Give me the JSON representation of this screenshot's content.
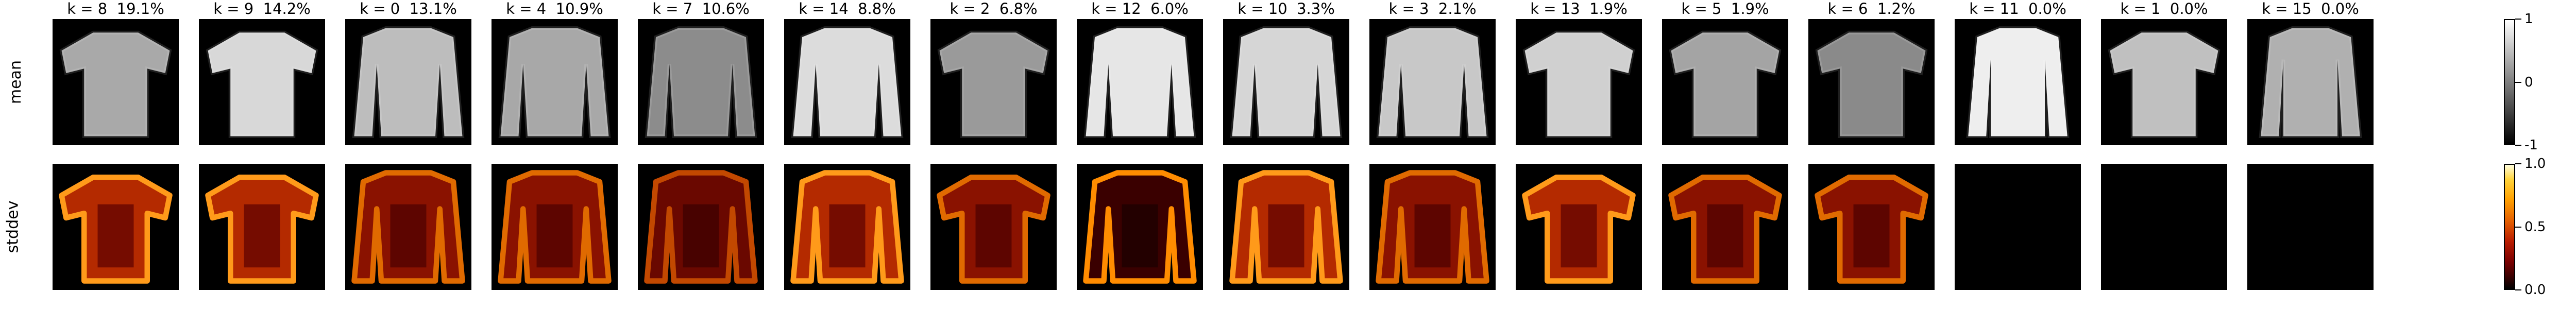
{
  "figure": {
    "row_labels": [
      "mean",
      "stddev"
    ],
    "panels": [
      {
        "k": 8,
        "pct": "19.1%",
        "title": "k = 8  19.1%",
        "shape": "tshirt",
        "mean_fill": "#a9a9a9",
        "std_level": "high"
      },
      {
        "k": 9,
        "pct": "14.2%",
        "title": "k = 9  14.2%",
        "shape": "tshirt",
        "mean_fill": "#d8d8d8",
        "std_level": "high"
      },
      {
        "k": 0,
        "pct": "13.1%",
        "title": "k = 0  13.1%",
        "shape": "sweater",
        "mean_fill": "#bdbdbd",
        "std_level": "mid"
      },
      {
        "k": 4,
        "pct": "10.9%",
        "title": "k = 4  10.9%",
        "shape": "sweater",
        "mean_fill": "#a8a8a8",
        "std_level": "mid"
      },
      {
        "k": 7,
        "pct": "10.6%",
        "title": "k = 7  10.6%",
        "shape": "sweater",
        "mean_fill": "#8c8c8c",
        "std_level": "low"
      },
      {
        "k": 14,
        "pct": "8.8%",
        "title": "k = 14  8.8%",
        "shape": "sweater",
        "mean_fill": "#dcdcdc",
        "std_level": "high"
      },
      {
        "k": 2,
        "pct": "6.8%",
        "title": "k = 2  6.8%",
        "shape": "tshirt",
        "mean_fill": "#9a9a9a",
        "std_level": "mid"
      },
      {
        "k": 12,
        "pct": "6.0%",
        "title": "k = 12  6.0%",
        "shape": "sweater",
        "mean_fill": "#e6e6e6",
        "std_level": "dark"
      },
      {
        "k": 10,
        "pct": "3.3%",
        "title": "k = 10  3.3%",
        "shape": "sweater",
        "mean_fill": "#d6d6d6",
        "std_level": "high"
      },
      {
        "k": 3,
        "pct": "2.1%",
        "title": "k = 3  2.1%",
        "shape": "sweater",
        "mean_fill": "#c8c8c8",
        "std_level": "mid"
      },
      {
        "k": 13,
        "pct": "1.9%",
        "title": "k = 13  1.9%",
        "shape": "tshirt",
        "mean_fill": "#d0d0d0",
        "std_level": "high"
      },
      {
        "k": 5,
        "pct": "1.9%",
        "title": "k = 5  1.9%",
        "shape": "tshirt",
        "mean_fill": "#a4a4a4",
        "std_level": "mid"
      },
      {
        "k": 6,
        "pct": "1.2%",
        "title": "k = 6  1.2%",
        "shape": "tshirt",
        "mean_fill": "#8a8a8a",
        "std_level": "mid"
      },
      {
        "k": 11,
        "pct": "0.0%",
        "title": "k = 11  0.0%",
        "shape": "jacket",
        "mean_fill": "#eeeeee",
        "std_level": "none"
      },
      {
        "k": 1,
        "pct": "0.0%",
        "title": "k = 1  0.0%",
        "shape": "tshirt",
        "mean_fill": "#c0c0c0",
        "std_level": "none"
      },
      {
        "k": 15,
        "pct": "0.0%",
        "title": "k = 15  0.0%",
        "shape": "jacket",
        "mean_fill": "#b0b0b0",
        "std_level": "none"
      }
    ],
    "colorbar_mean": {
      "ticks": [
        "1",
        "0",
        "-1"
      ],
      "colors": {
        "top": "#ffffff",
        "mid": "#7f7f7f",
        "bottom": "#000000"
      }
    },
    "colorbar_std": {
      "ticks": [
        "1.0",
        "0.5",
        "0.0"
      ],
      "colormap": "afmhot"
    }
  }
}
